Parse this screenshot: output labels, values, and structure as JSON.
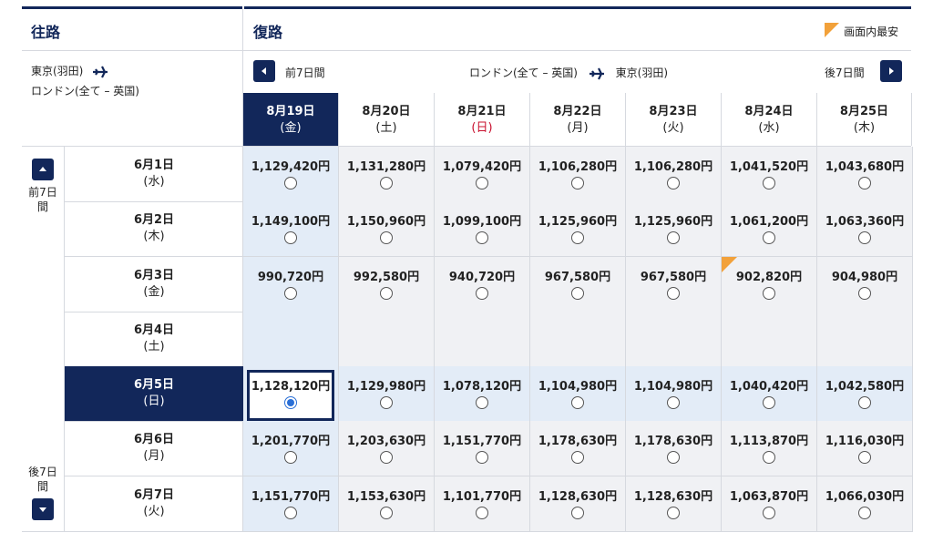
{
  "outbound_header": "往路",
  "return_header": "復路",
  "cheapest_legend": "画面内最安",
  "outbound_route": {
    "from": "東京(羽田)",
    "to": "ロンドン(全て – 英国)"
  },
  "return_route": {
    "from": "ロンドン(全て – 英国)",
    "to": "東京(羽田)"
  },
  "prev_week_label": "前7日間",
  "next_week_label": "後7日間",
  "side_prev_label": "前7日間",
  "side_next_label": "後7日間",
  "colors": {
    "navy": "#12275a",
    "accent_orange": "#f2a13a",
    "sunday_red": "#c8102e",
    "selected_bg": "#e3ecf7",
    "cell_bg": "#f0f1f4"
  },
  "return_dates": [
    {
      "date": "8月19日",
      "dow": "(金)"
    },
    {
      "date": "8月20日",
      "dow": "(土)"
    },
    {
      "date": "8月21日",
      "dow": "(日)"
    },
    {
      "date": "8月22日",
      "dow": "(月)"
    },
    {
      "date": "8月23日",
      "dow": "(火)"
    },
    {
      "date": "8月24日",
      "dow": "(水)"
    },
    {
      "date": "8月25日",
      "dow": "(木)"
    }
  ],
  "outbound_dates": [
    {
      "date": "6月1日",
      "dow": "(水)"
    },
    {
      "date": "6月2日",
      "dow": "(木)"
    },
    {
      "date": "6月3日",
      "dow": "(金)"
    },
    {
      "date": "6月4日",
      "dow": "(土)"
    },
    {
      "date": "6月5日",
      "dow": "(日)"
    },
    {
      "date": "6月6日",
      "dow": "(月)"
    },
    {
      "date": "6月7日",
      "dow": "(火)"
    }
  ],
  "prices": [
    [
      "1,129,420円",
      "1,131,280円",
      "1,079,420円",
      "1,106,280円",
      "1,106,280円",
      "1,041,520円",
      "1,043,680円"
    ],
    [
      "1,149,100円",
      "1,150,960円",
      "1,099,100円",
      "1,125,960円",
      "1,125,960円",
      "1,061,200円",
      "1,063,360円"
    ],
    [
      "990,720円",
      "992,580円",
      "940,720円",
      "967,580円",
      "967,580円",
      "902,820円",
      "904,980円"
    ],
    [
      "",
      "",
      "",
      "",
      "",
      "",
      ""
    ],
    [
      "1,128,120円",
      "1,129,980円",
      "1,078,120円",
      "1,104,980円",
      "1,104,980円",
      "1,040,420円",
      "1,042,580円"
    ],
    [
      "1,201,770円",
      "1,203,630円",
      "1,151,770円",
      "1,178,630円",
      "1,178,630円",
      "1,113,870円",
      "1,116,030円"
    ],
    [
      "1,151,770円",
      "1,153,630円",
      "1,101,770円",
      "1,128,630円",
      "1,128,630円",
      "1,063,870円",
      "1,066,030円"
    ]
  ],
  "selected": {
    "outbound_index": 4,
    "return_index": 0
  },
  "cheapest_cell": {
    "row": 2,
    "col": 5
  }
}
